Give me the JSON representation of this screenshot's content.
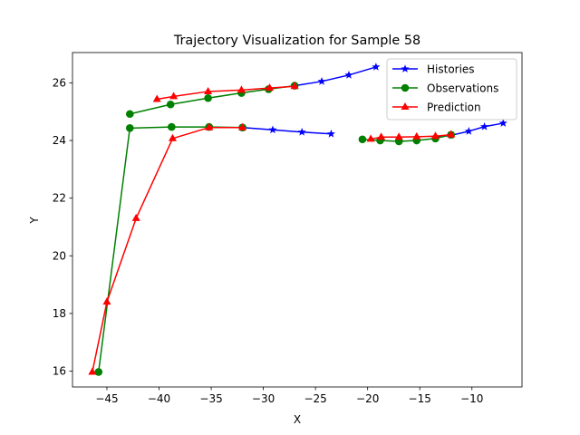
{
  "chart_data": {
    "type": "line",
    "title": "Trajectory Visualization for Sample 58",
    "xlabel": "X",
    "ylabel": "Y",
    "xlim": [
      -48.3,
      -5.2
    ],
    "ylim": [
      15.45,
      27.05
    ],
    "xticks": [
      -45,
      -40,
      -35,
      -30,
      -25,
      -20,
      -15,
      -10
    ],
    "yticks": [
      16,
      18,
      20,
      22,
      24,
      26
    ],
    "legend_position": "upper right",
    "grid": false,
    "series": [
      {
        "name": "Histories",
        "color": "#0000ff",
        "marker": "star",
        "segments": [
          [
            [
              -32.0,
              24.45
            ],
            [
              -29.1,
              24.37
            ],
            [
              -26.3,
              24.29
            ],
            [
              -23.5,
              24.23
            ]
          ],
          [
            [
              -27.0,
              25.9
            ],
            [
              -24.4,
              26.05
            ],
            [
              -21.8,
              26.27
            ],
            [
              -19.2,
              26.55
            ]
          ],
          [
            [
              -13.5,
              24.1
            ],
            [
              -12.0,
              24.18
            ],
            [
              -10.3,
              24.32
            ],
            [
              -8.8,
              24.48
            ],
            [
              -7.0,
              24.6
            ]
          ]
        ]
      },
      {
        "name": "Observations",
        "color": "#008000",
        "marker": "circle",
        "segments": [
          [
            [
              -45.8,
              15.97
            ],
            [
              -42.8,
              24.43
            ],
            [
              -38.8,
              24.47
            ],
            [
              -35.2,
              24.47
            ],
            [
              -32.0,
              24.45
            ]
          ],
          [
            [
              -42.8,
              24.92
            ],
            [
              -38.9,
              25.25
            ],
            [
              -35.3,
              25.47
            ],
            [
              -32.1,
              25.65
            ],
            [
              -29.5,
              25.78
            ],
            [
              -27.0,
              25.9
            ]
          ],
          [
            [
              -20.5,
              24.04
            ],
            [
              -18.8,
              24.0
            ],
            [
              -17.0,
              23.97
            ],
            [
              -15.3,
              24.0
            ],
            [
              -13.5,
              24.07
            ],
            [
              -12.0,
              24.2
            ]
          ]
        ]
      },
      {
        "name": "Prediction",
        "color": "#ff0000",
        "marker": "triangle",
        "segments": [
          [
            [
              -46.4,
              15.97
            ],
            [
              -45.0,
              18.4
            ],
            [
              -42.2,
              21.3
            ],
            [
              -38.7,
              24.07
            ],
            [
              -35.2,
              24.45
            ],
            [
              -32.0,
              24.45
            ]
          ],
          [
            [
              -40.2,
              25.43
            ],
            [
              -38.6,
              25.53
            ],
            [
              -35.3,
              25.7
            ],
            [
              -32.1,
              25.75
            ],
            [
              -29.4,
              25.82
            ],
            [
              -27.0,
              25.88
            ]
          ],
          [
            [
              -19.7,
              24.05
            ],
            [
              -18.7,
              24.12
            ],
            [
              -17.0,
              24.12
            ],
            [
              -15.3,
              24.13
            ],
            [
              -13.5,
              24.15
            ],
            [
              -12.0,
              24.2
            ]
          ]
        ]
      }
    ]
  }
}
